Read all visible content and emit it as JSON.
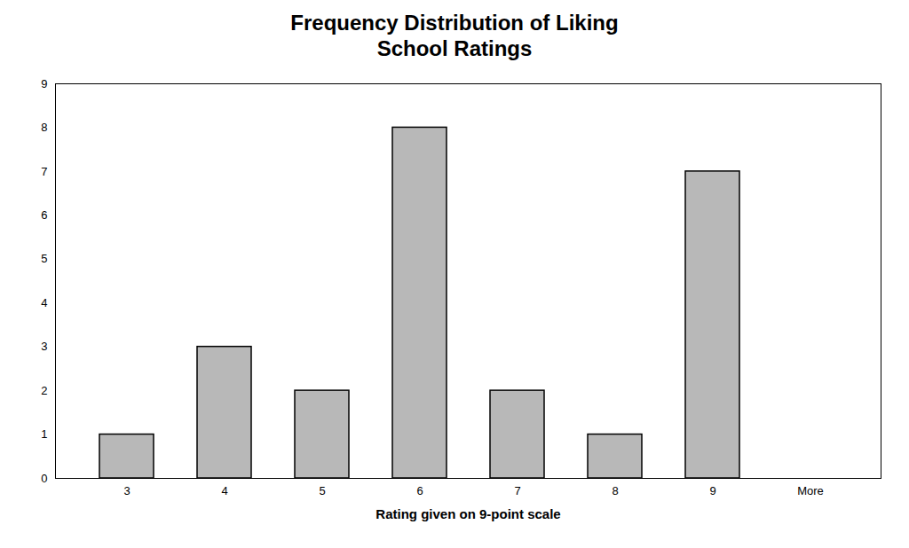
{
  "chart_data": {
    "type": "bar",
    "title": "Frequency Distribution of Liking\nSchool Ratings",
    "xlabel": "Rating given on 9-point scale",
    "categories": [
      "3",
      "4",
      "5",
      "6",
      "7",
      "8",
      "9",
      "More"
    ],
    "values": [
      1,
      3,
      2,
      8,
      2,
      1,
      7,
      0
    ],
    "color": "#b8b8b8",
    "ylim": [
      0,
      9
    ],
    "yticks": [
      0,
      1,
      2,
      3,
      4,
      5,
      6,
      7,
      8,
      9
    ],
    "grid": false
  }
}
